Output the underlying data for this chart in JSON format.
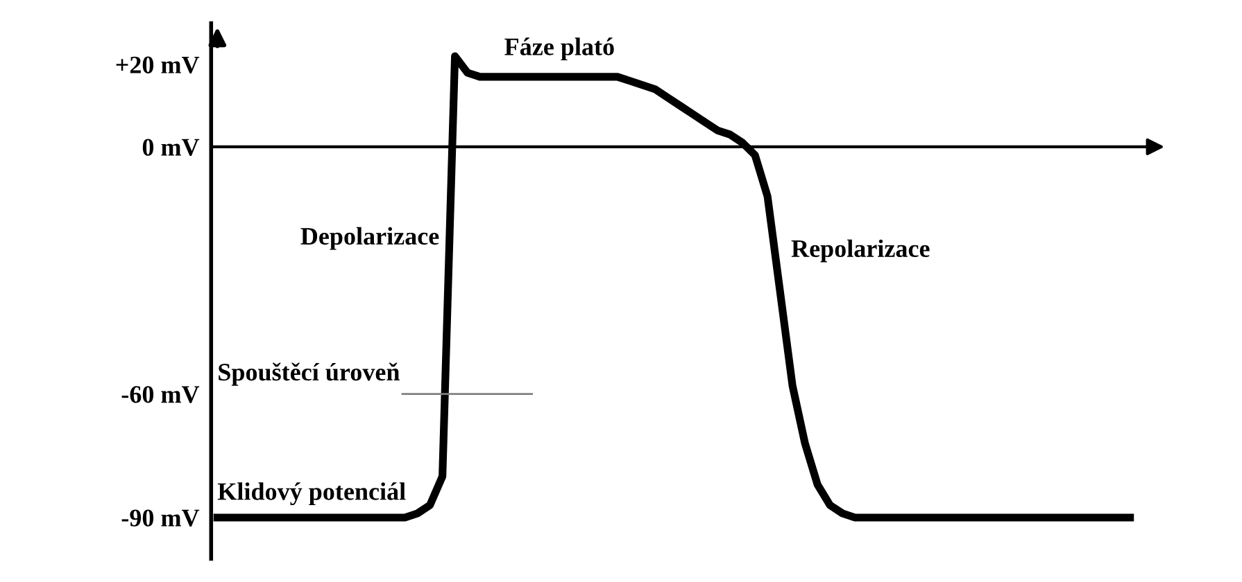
{
  "chart_data": {
    "type": "line",
    "categories": [
      null,
      null,
      null,
      null,
      null,
      null,
      null,
      null,
      null,
      null,
      null,
      null,
      null,
      null,
      null,
      null,
      null,
      null,
      null,
      null,
      null,
      null,
      null,
      null,
      null,
      null,
      null,
      null,
      null,
      null,
      null,
      null,
      null,
      null,
      null,
      null,
      null,
      null,
      null,
      null,
      null,
      null,
      null,
      null,
      null,
      null,
      null,
      null,
      null,
      null,
      null,
      null,
      null,
      null,
      null,
      null,
      null,
      null,
      null,
      null,
      null,
      null,
      null,
      null,
      null,
      null,
      null,
      null,
      null,
      null,
      null,
      null,
      null,
      null
    ],
    "series": [
      {
        "color": "#000000",
        "values": [
          -90,
          -90,
          -90,
          -90,
          -90,
          -90,
          -90,
          -90,
          -90,
          -90,
          -90,
          -90,
          -90,
          -90,
          -90,
          -90,
          -89,
          -87,
          -80,
          22,
          18,
          17,
          17,
          17,
          17,
          17,
          17,
          17,
          17,
          17,
          17,
          17,
          17,
          16,
          15,
          14,
          12,
          10,
          8,
          6,
          4,
          3,
          1,
          -2,
          -12,
          -35,
          -58,
          -72,
          -82,
          -87,
          -89,
          -90,
          -90,
          -90,
          -90,
          -90,
          -90,
          -90,
          -90,
          -90,
          -90,
          -90,
          -90,
          -90,
          -90,
          -90,
          -90,
          -90,
          -90,
          -90,
          -90,
          -90,
          -90,
          -90
        ]
      }
    ],
    "ylim": [
      -100,
      30
    ],
    "yticks": [
      {
        "value": 20,
        "label": "+20 mV"
      },
      {
        "value": 0,
        "label": "0 mV"
      },
      {
        "value": -60,
        "label": "-60 mV"
      },
      {
        "value": -90,
        "label": "-90 mV"
      }
    ],
    "tick_labels": "y",
    "grid": false,
    "legend": false,
    "marker": "none",
    "line_style": "solid",
    "ref_lines": [
      {
        "axis": "y",
        "value": 0,
        "color": "#000000"
      },
      {
        "axis": "y",
        "value": -60,
        "label": "Spouštěcí úroveň",
        "color": "#808080"
      }
    ],
    "annotations": [
      "Fáze plató",
      "Depolarizace",
      "Repolarizace",
      "Klidový potenciál"
    ]
  }
}
